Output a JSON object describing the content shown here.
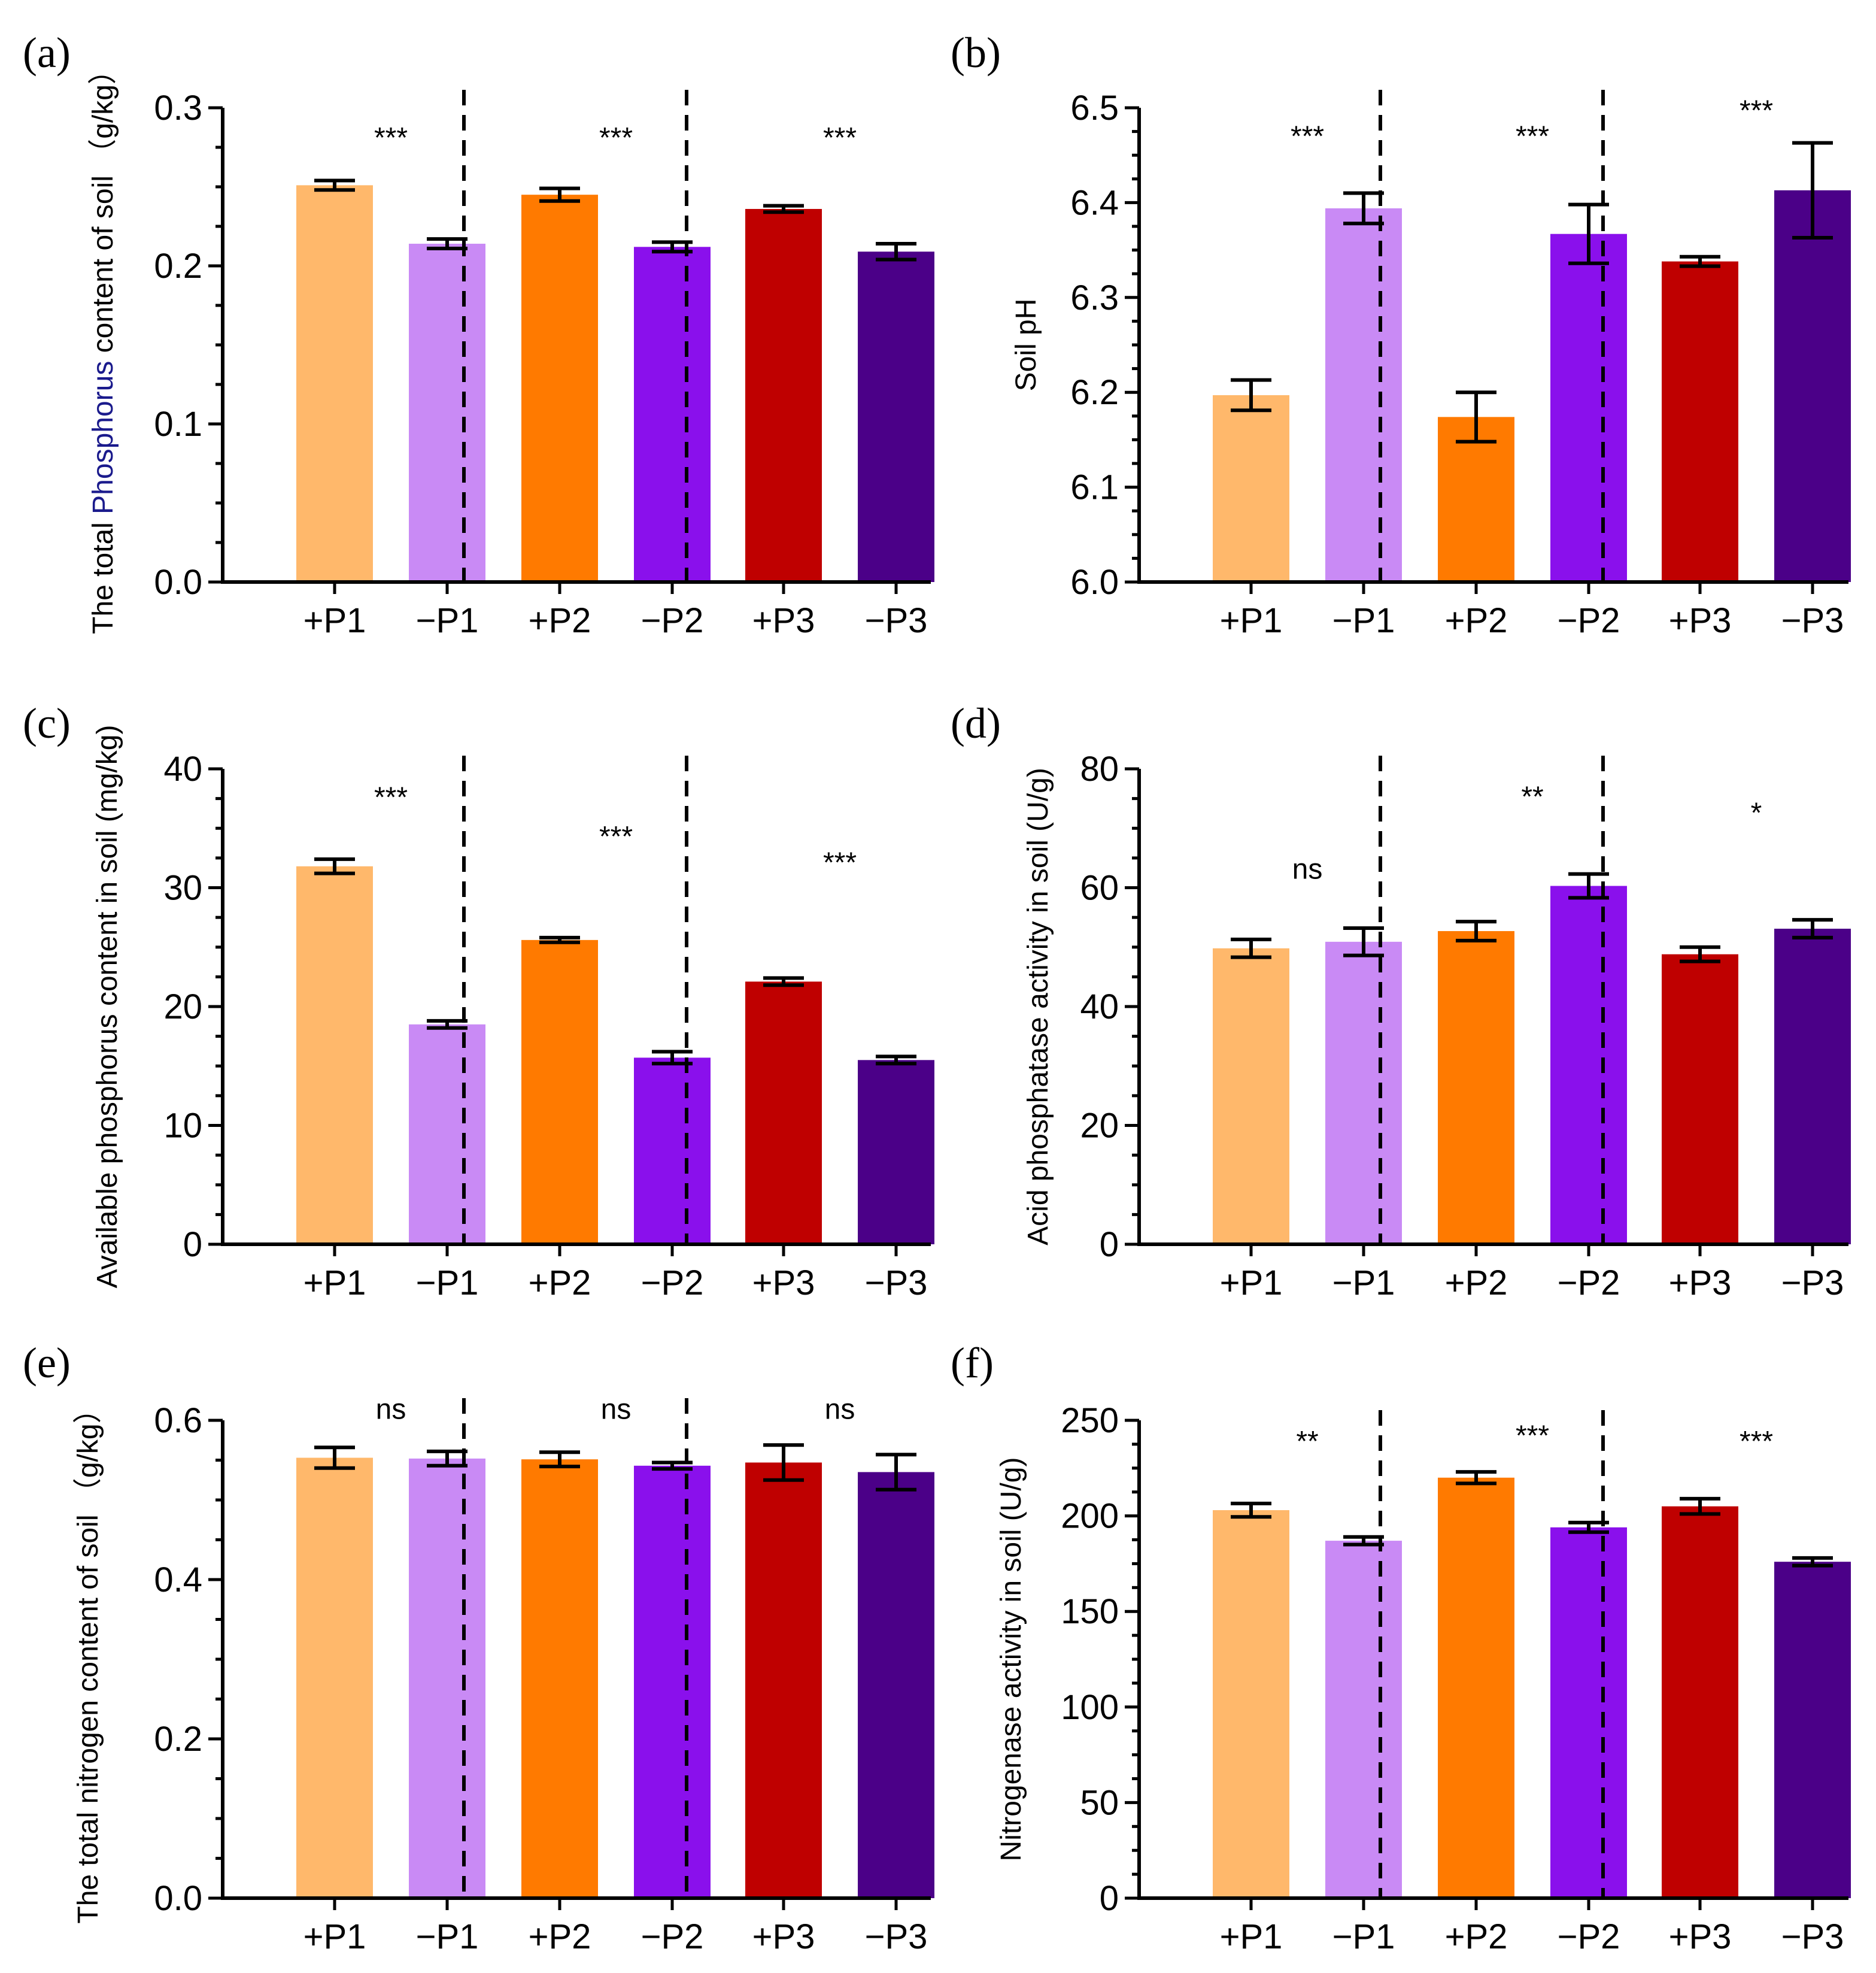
{
  "colors": {
    "P1_plus": "#FFB86B",
    "P1_minus": "#C98AF5",
    "P2_plus": "#FF7A00",
    "P2_minus": "#8A10EC",
    "P3_plus": "#BF0000",
    "P3_minus": "#4B0088",
    "axis": "#000000"
  },
  "chart_data": [
    {
      "id": "a",
      "panel_label": "(a)",
      "type": "bar",
      "categories": [
        "+P1",
        "−P1",
        "+P2",
        "−P2",
        "+P3",
        "−P3"
      ],
      "values": [
        0.251,
        0.214,
        0.245,
        0.212,
        0.236,
        0.209
      ],
      "errors": [
        0.003,
        0.003,
        0.004,
        0.003,
        0.002,
        0.005
      ],
      "ylabel": "The total Phosphorus content of soil （g/kg）",
      "ylabel_parts": [
        "The total ",
        "Phosphorus",
        " content of soil （g/kg）"
      ],
      "ylim": [
        0,
        0.3
      ],
      "yticks": [
        0.0,
        0.1,
        0.2,
        0.3
      ],
      "ytick_labels": [
        "0.0",
        "0.1",
        "0.2",
        "0.3"
      ],
      "minor_ticks": true,
      "significance": [
        "***",
        "***",
        "***"
      ],
      "sig_values": [
        0.275,
        0.275,
        0.275
      ]
    },
    {
      "id": "b",
      "panel_label": "(b)",
      "type": "bar",
      "categories": [
        "+P1",
        "−P1",
        "+P2",
        "−P2",
        "+P3",
        "−P3"
      ],
      "values": [
        6.197,
        6.394,
        6.174,
        6.367,
        6.338,
        6.413
      ],
      "errors": [
        0.016,
        0.016,
        0.026,
        0.031,
        0.005,
        0.05
      ],
      "ylabel": "Soil pH",
      "ylim": [
        6.0,
        6.5
      ],
      "yticks": [
        6.0,
        6.1,
        6.2,
        6.3,
        6.4,
        6.5
      ],
      "ytick_labels": [
        "6.0",
        "6.1",
        "6.2",
        "6.3",
        "6.4",
        "6.5"
      ],
      "minor_ticks": true,
      "significance": [
        "***",
        "***",
        "***"
      ],
      "sig_values": [
        6.46,
        6.46,
        6.487
      ]
    },
    {
      "id": "c",
      "panel_label": "(c)",
      "type": "bar",
      "categories": [
        "+P1",
        "−P1",
        "+P2",
        "−P2",
        "+P3",
        "−P3"
      ],
      "values": [
        31.8,
        18.5,
        25.6,
        15.7,
        22.1,
        15.5
      ],
      "errors": [
        0.6,
        0.3,
        0.2,
        0.5,
        0.3,
        0.3
      ],
      "ylabel": "Available phosphorus content in soil (mg/kg)",
      "ylim": [
        0,
        40
      ],
      "yticks": [
        0,
        10,
        20,
        30,
        40
      ],
      "ytick_labels": [
        "0",
        "10",
        "20",
        "30",
        "40"
      ],
      "minor_ticks": true,
      "significance": [
        "***",
        "***",
        "***"
      ],
      "sig_values": [
        36.8,
        33.5,
        31.3
      ]
    },
    {
      "id": "d",
      "panel_label": "(d)",
      "type": "bar",
      "categories": [
        "+P1",
        "−P1",
        "+P2",
        "−P2",
        "+P3",
        "−P3"
      ],
      "values": [
        49.8,
        50.9,
        52.7,
        60.3,
        48.8,
        53.1
      ],
      "errors": [
        1.5,
        2.3,
        1.6,
        2.0,
        1.2,
        1.5
      ],
      "ylabel": "Acid phosphatase activity in soil (U/g)",
      "ylim": [
        0,
        80
      ],
      "yticks": [
        0,
        20,
        40,
        60,
        80
      ],
      "ytick_labels": [
        "0",
        "20",
        "40",
        "60",
        "80"
      ],
      "minor_ticks": true,
      "significance": [
        "ns",
        "**",
        "*"
      ],
      "sig_values": [
        61.5,
        73.7,
        71.0
      ]
    },
    {
      "id": "e",
      "panel_label": "(e)",
      "type": "bar",
      "categories": [
        "+P1",
        "−P1",
        "+P2",
        "−P2",
        "+P3",
        "−P3"
      ],
      "values": [
        0.553,
        0.552,
        0.551,
        0.543,
        0.547,
        0.535
      ],
      "errors": [
        0.013,
        0.009,
        0.009,
        0.004,
        0.022,
        0.022
      ],
      "ylabel": "The total nitrogen content of soil （g/kg）",
      "ylim": [
        0,
        0.6
      ],
      "yticks": [
        0.0,
        0.2,
        0.4,
        0.6
      ],
      "ytick_labels": [
        "0.0",
        "0.2",
        "0.4",
        "0.6"
      ],
      "minor_ticks": true,
      "significance": [
        "ns",
        "ns",
        "ns"
      ],
      "sig_values": [
        0.602,
        0.602,
        0.602
      ]
    },
    {
      "id": "f",
      "panel_label": "(f)",
      "type": "bar",
      "categories": [
        "+P1",
        "−P1",
        "+P2",
        "−P2",
        "+P3",
        "−P3"
      ],
      "values": [
        203,
        187,
        220,
        194,
        205,
        176
      ],
      "errors": [
        3.5,
        2.0,
        3.0,
        2.5,
        4.0,
        2.0
      ],
      "ylabel": "Nitrogenase activity in soil (U/g)",
      "ylim": [
        0,
        250
      ],
      "yticks": [
        0,
        50,
        100,
        150,
        200,
        250
      ],
      "ytick_labels": [
        "0",
        "50",
        "100",
        "150",
        "200",
        "250"
      ],
      "minor_ticks": true,
      "significance": [
        "**",
        "***",
        "***"
      ],
      "sig_values": [
        234,
        237,
        234
      ]
    }
  ]
}
